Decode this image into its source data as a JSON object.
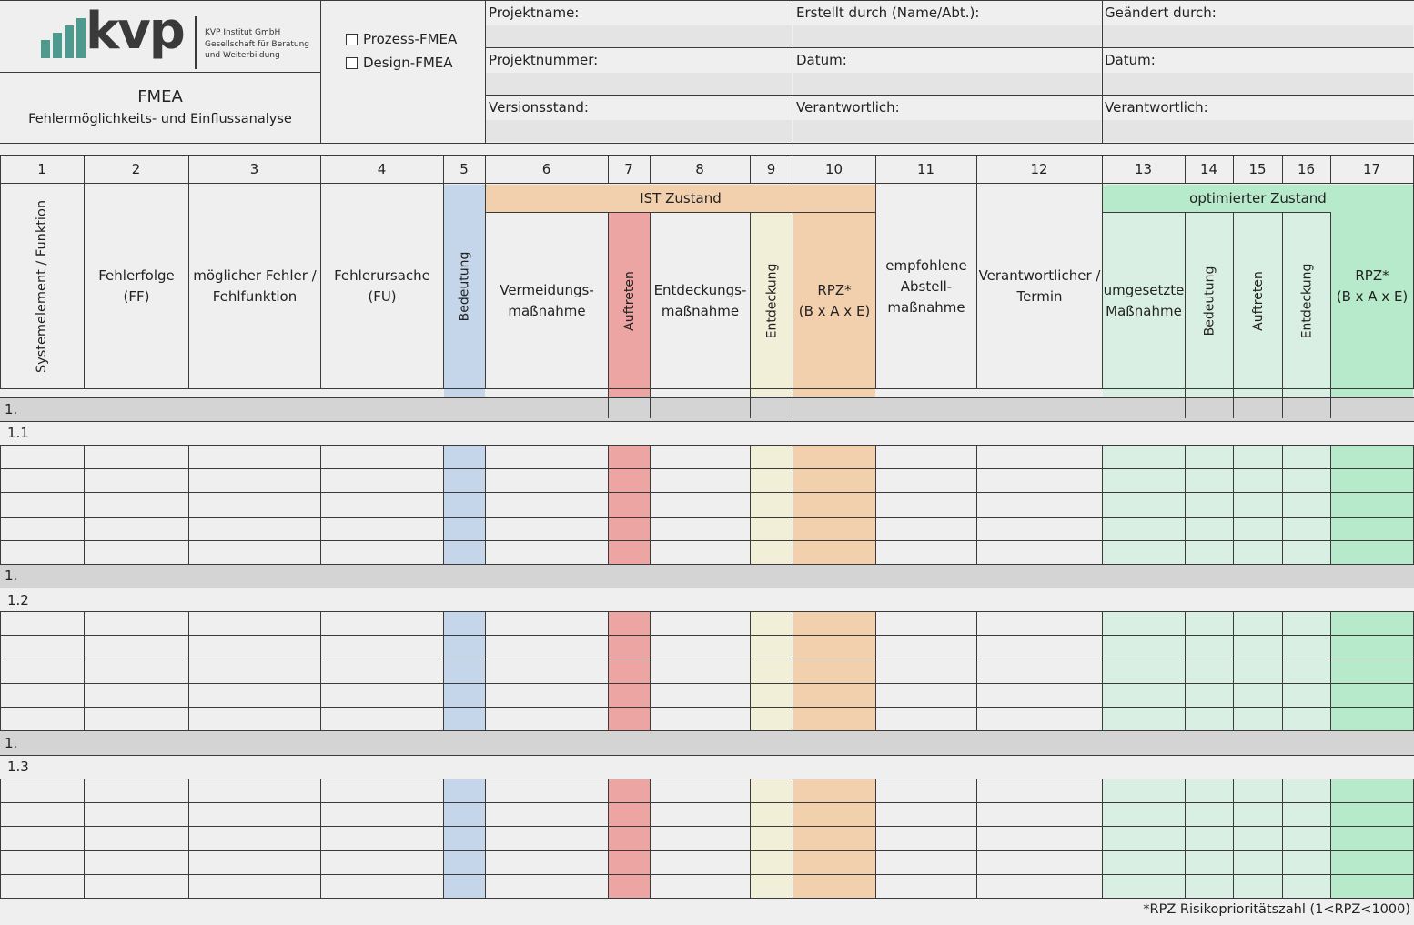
{
  "logo": {
    "text": "kvp",
    "company_lines": [
      "KVP Institut GmbH",
      "Gesellschaft für Beratung",
      "und Weiterbildung"
    ],
    "bar_color": "#4e9a8f"
  },
  "title": {
    "main": "FMEA",
    "sub": "Fehlermöglichkeits- und Einflussanalyse"
  },
  "fmea_type": {
    "options": [
      {
        "label": "Prozess-FMEA",
        "checked": false
      },
      {
        "label": "Design-FMEA",
        "checked": false
      }
    ]
  },
  "info": {
    "projektname": "Projektname:",
    "erstellt_durch": "Erstellt durch (Name/Abt.):",
    "geaendert_durch": "Geändert durch:",
    "projektnummer": "Projektnummer:",
    "datum1": "Datum:",
    "datum2": "Datum:",
    "versionsstand": "Versionsstand:",
    "verantwortlich1": "Verantwortlich:",
    "verantwortlich2": "Verantwortlich:"
  },
  "column_numbers": [
    "1",
    "2",
    "3",
    "4",
    "5",
    "6",
    "7",
    "8",
    "9",
    "10",
    "11",
    "12",
    "13",
    "14",
    "15",
    "16",
    "17"
  ],
  "group_headers": {
    "ist": "IST Zustand",
    "optimiert": "optimierter Zustand"
  },
  "column_headers": {
    "c1": "Systemelement / Funktion",
    "c2": "Fehlerfolge (FF)",
    "c3_line1": "möglicher Fehler /",
    "c3_line2": "Fehlfunktion",
    "c4_line1": "Fehlerursache",
    "c4_line2": "(FU)",
    "c5": "Bedeutung",
    "c6_line1": "Vermeidungs-",
    "c6_line2": "maßnahme",
    "c7": "Auftreten",
    "c8_line1": "Entdeckungs-",
    "c8_line2": "maßnahme",
    "c9": "Entdeckung",
    "c10_line1": "RPZ*",
    "c10_line2": "(B x A x E)",
    "c11_line1": "empfohlene",
    "c11_line2": "Abstell-",
    "c11_line3": "maßnahme",
    "c12_line1": "Verantwortlicher /",
    "c12_line2": "Termin",
    "c13_line1": "umgesetzte",
    "c13_line2": "Maßnahme",
    "c14": "Bedeutung",
    "c15": "Auftreten",
    "c16": "Entdeckung",
    "c17_line1": "RPZ*",
    "c17_line2": "(B x A x E)"
  },
  "sections": [
    {
      "label": "1.",
      "sub_label": "1.1"
    },
    {
      "label": "1.",
      "sub_label": "1.2"
    },
    {
      "label": "1.",
      "sub_label": "1.3"
    }
  ],
  "footnote": "*RPZ Risikoprioritätszahl (1<RPZ<1000)",
  "colors": {
    "bedeutung": "#c5d6ea",
    "auftreten": "#eda5a4",
    "entdeckung": "#f2efd8",
    "rpz": "#f2cfad",
    "optimiert": "#d9efe4",
    "optimiert_rpz": "#b7eacb",
    "section_bar": "#d4d4d4"
  }
}
